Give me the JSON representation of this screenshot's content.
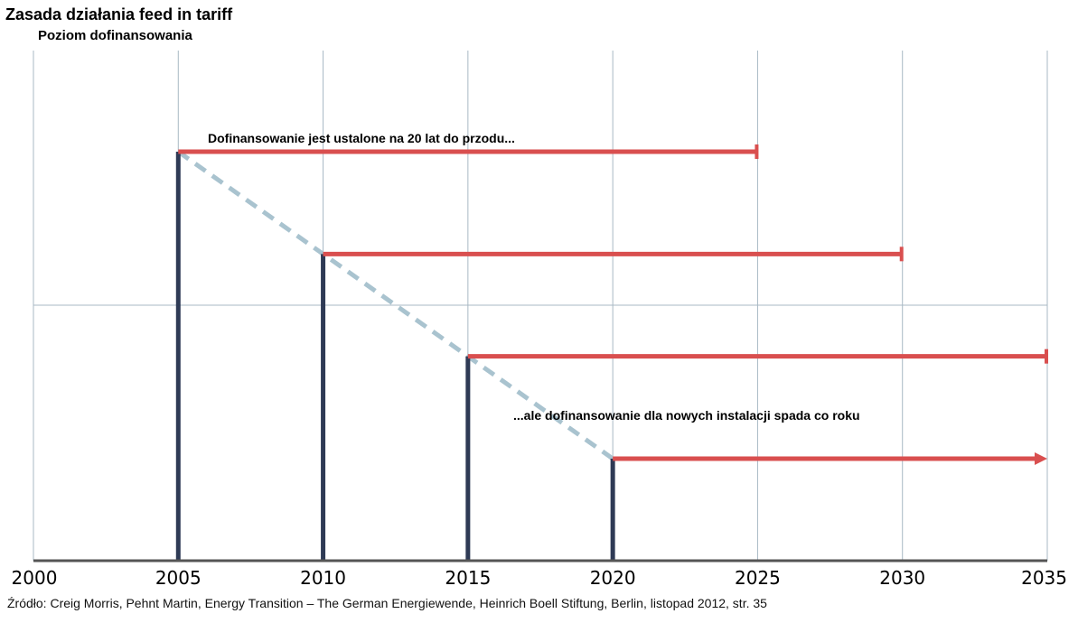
{
  "title": "Zasada działania feed in tariff",
  "source": "Źródło: Creig Morris, Pehnt Martin, Energy Transition – The German Energiewende, Heinrich Boell Stiftung, Berlin, listopad 2012, str. 35",
  "colors": {
    "red": "#d94f4f",
    "navy": "#2e3a55",
    "dash": "#a9c3cf",
    "grid": "#a8b8c4",
    "axis": "#555555"
  },
  "chart_data": {
    "type": "line",
    "xlim": [
      2000,
      2035
    ],
    "ylim": [
      0,
      4
    ],
    "ylabel": "Poziom dofinansowania",
    "x_ticks": [
      "2000",
      "2005",
      "2010",
      "2015",
      "2020",
      "2025",
      "2030",
      "2035"
    ],
    "grid": true,
    "tariffs": [
      {
        "start": 2005,
        "end": 2025,
        "level": 4.0,
        "end_style": "bar"
      },
      {
        "start": 2010,
        "end": 2030,
        "level": 3.0,
        "end_style": "bar"
      },
      {
        "start": 2015,
        "end": 2035,
        "level": 2.0,
        "end_style": "bar"
      },
      {
        "start": 2020,
        "end": 2035,
        "level": 1.0,
        "end_style": "arrow"
      }
    ],
    "decline_line": {
      "x": [
        2005,
        2020
      ],
      "y": [
        4.0,
        1.0
      ]
    },
    "annotations": [
      {
        "text": "Dofinansowanie jest ustalone na 20 lat do przodu..."
      },
      {
        "text": "...ale dofinansowanie dla nowych instalacji spada co roku"
      }
    ]
  }
}
